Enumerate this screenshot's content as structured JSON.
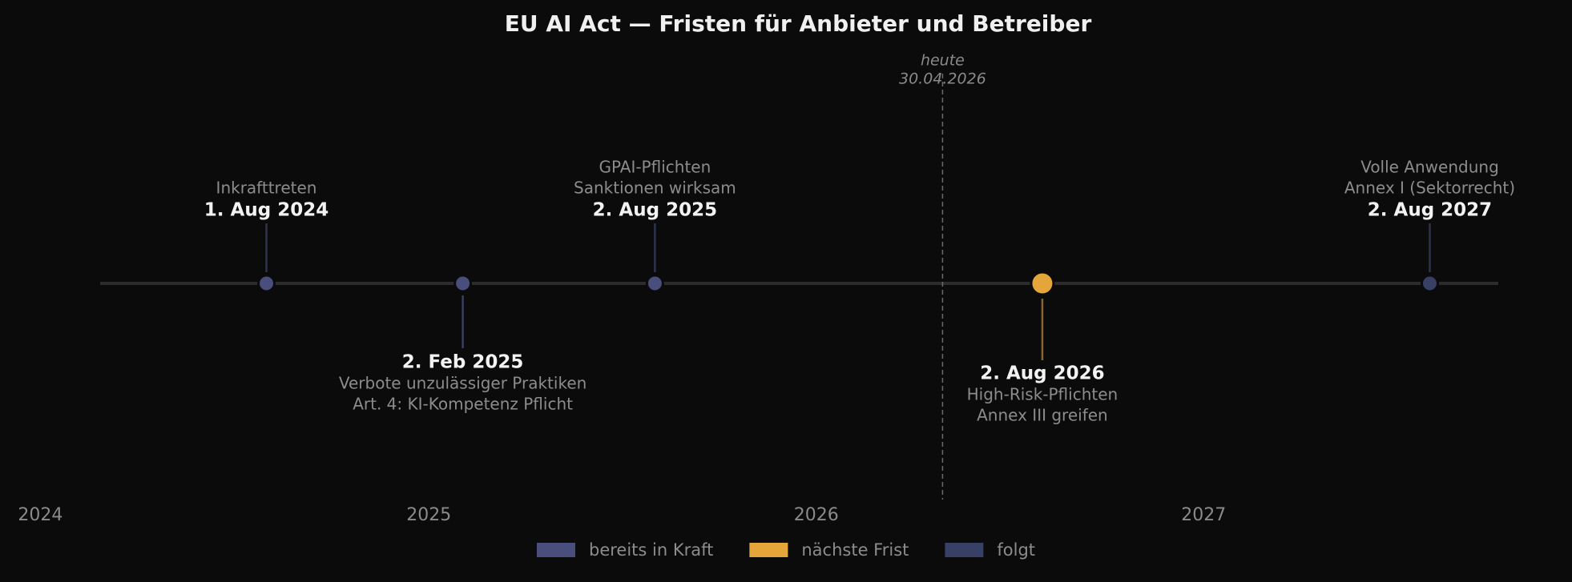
{
  "chart_data": {
    "type": "timeline",
    "title": "EU AI Act — Fristen für Anbieter und Betreiber",
    "xlim": [
      "2023-11-24",
      "2027-12-14"
    ],
    "xticks": [
      {
        "value": "2024-01-01",
        "label": "2024"
      },
      {
        "value": "2025-01-01",
        "label": "2025"
      },
      {
        "value": "2026-01-01",
        "label": "2026"
      },
      {
        "value": "2027-01-01",
        "label": "2027"
      }
    ],
    "today": {
      "label": "heute",
      "date_label": "30.04.2026",
      "x": "2026-04-30"
    },
    "series": [
      {
        "name": "bereits in Kraft",
        "color": "#4a4e7c"
      },
      {
        "name": "nächste Frist",
        "color": "#e4a53a"
      },
      {
        "name": "folgt",
        "color": "#384066"
      }
    ],
    "events": [
      {
        "x": "2024-08-01",
        "date_label": "1. Aug 2024",
        "lines": [
          "Inkrafttreten"
        ],
        "side": "above",
        "status": 0
      },
      {
        "x": "2025-02-02",
        "date_label": "2. Feb 2025",
        "lines": [
          "Verbote unzulässiger Praktiken",
          "Art. 4: KI-Kompetenz Pflicht"
        ],
        "side": "below",
        "status": 0
      },
      {
        "x": "2025-08-02",
        "date_label": "2. Aug 2025",
        "lines": [
          "GPAI-Pflichten",
          "Sanktionen wirksam"
        ],
        "side": "above",
        "status": 0
      },
      {
        "x": "2026-08-02",
        "date_label": "2. Aug 2026",
        "lines": [
          "High-Risk-Pflichten",
          "Annex III greifen"
        ],
        "side": "below",
        "status": 1
      },
      {
        "x": "2027-08-02",
        "date_label": "2. Aug 2027",
        "lines": [
          "Volle Anwendung",
          "Annex I (Sektorrecht)"
        ],
        "side": "above",
        "status": 2
      }
    ]
  }
}
